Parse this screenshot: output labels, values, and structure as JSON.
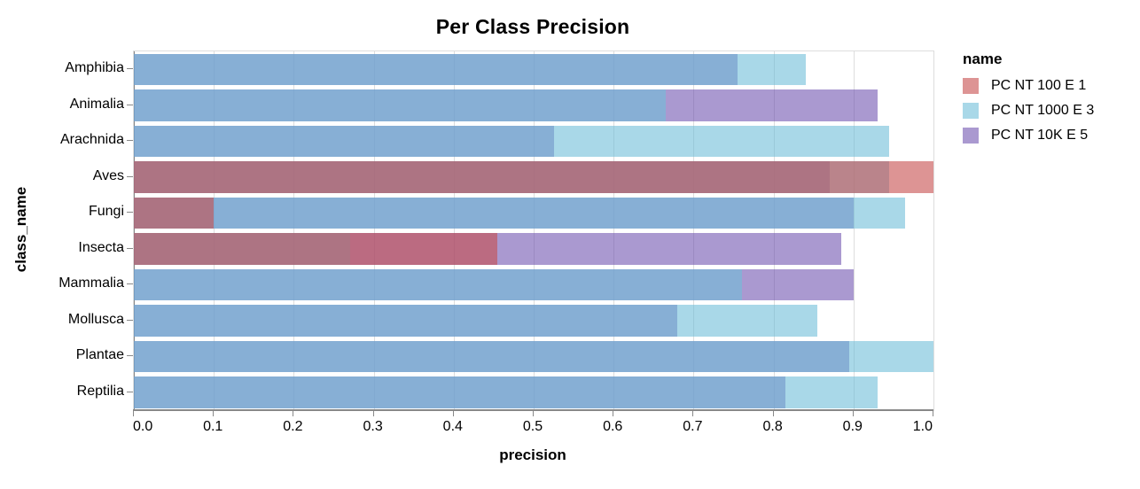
{
  "title": "Per Class Precision",
  "x_axis": {
    "title": "precision",
    "tick_labels": [
      "0.0",
      "0.1",
      "0.2",
      "0.3",
      "0.4",
      "0.5",
      "0.6",
      "0.7",
      "0.8",
      "0.9",
      "1.0"
    ],
    "range": [
      0,
      1
    ]
  },
  "y_axis": {
    "title": "class_name"
  },
  "legend": {
    "title": "name"
  },
  "colors": {
    "grid": "#dddddd",
    "axis_domain": "#888888",
    "text": "#000000",
    "series_red": "#c64d4d",
    "series_lightblue": "#70bed9",
    "series_purple": "#7155b1"
  },
  "chart_data": {
    "type": "bar",
    "orientation": "horizontal",
    "layering": "overlapping semi-transparent bars, first series drawn on top",
    "bar_opacity": 0.6,
    "title": "Per Class Precision",
    "xlabel": "precision",
    "ylabel": "class_name",
    "xlim": [
      0,
      1
    ],
    "grid": true,
    "legend_position": "right",
    "categories": [
      "Amphibia",
      "Animalia",
      "Arachnida",
      "Aves",
      "Fungi",
      "Insecta",
      "Mammalia",
      "Mollusca",
      "Plantae",
      "Reptilia"
    ],
    "series": [
      {
        "name": "PC NT 100 E 1",
        "color": "#c64d4d",
        "values": [
          null,
          null,
          null,
          1.0,
          0.1,
          0.455,
          null,
          null,
          null,
          null
        ]
      },
      {
        "name": "PC NT 1000 E 3",
        "color": "#70bed9",
        "values": [
          0.84,
          0.665,
          0.945,
          0.945,
          0.965,
          0.27,
          0.76,
          0.855,
          1.0,
          0.93
        ]
      },
      {
        "name": "PC NT 10K E 5",
        "color": "#7155b1",
        "values": [
          0.755,
          0.93,
          0.525,
          0.87,
          0.9,
          0.885,
          0.9,
          0.68,
          0.895,
          0.815
        ]
      }
    ]
  }
}
